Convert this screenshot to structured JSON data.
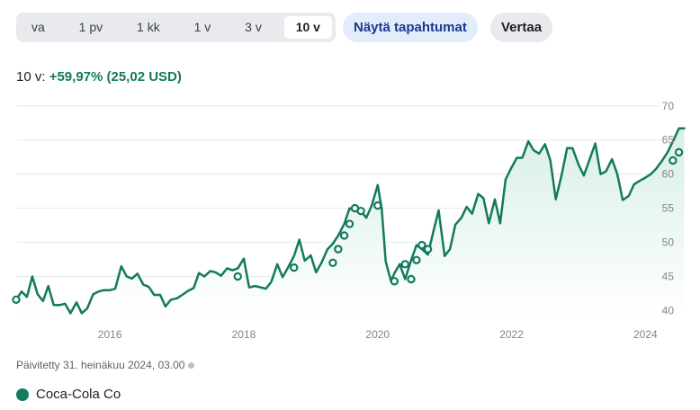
{
  "range_tabs": [
    {
      "label": "va"
    },
    {
      "label": "1 pv"
    },
    {
      "label": "1 kk"
    },
    {
      "label": "1 v"
    },
    {
      "label": "3 v"
    },
    {
      "label": "10 v",
      "active": true
    }
  ],
  "buttons": {
    "events_label": "Näytä tapahtumat",
    "compare_label": "Vertaa"
  },
  "performance": {
    "period_label": "10 v:",
    "change": "+59,97% (25,02 USD)"
  },
  "updated_text": "Päivitetty 31. heinäkuu 2024, 03.00",
  "legend": {
    "name": "Coca-Cola Co",
    "color": "#137a5e"
  },
  "colors": {
    "line": "#137a5e",
    "grid": "#e8eaed",
    "fill_top": "#d8efe6",
    "fill_bottom": "#ffffff"
  },
  "chart_data": {
    "type": "area",
    "xlim": [
      2014.6,
      2024.6
    ],
    "ylim": [
      39,
      70.5
    ],
    "x_ticks": [
      2016,
      2018,
      2020,
      2022,
      2024
    ],
    "x_tick_labels": [
      "2016",
      "2018",
      "2020",
      "2022",
      "2024"
    ],
    "y_ticks": [
      40,
      45,
      50,
      55,
      60,
      65,
      70
    ],
    "y_tick_labels": [
      "40",
      "45",
      "50",
      "55",
      "60",
      "65",
      "70"
    ],
    "grid": true,
    "series": [
      {
        "name": "Coca-Cola Co",
        "x": [
          2014.6,
          2014.68,
          2014.76,
          2014.84,
          2014.92,
          2015.0,
          2015.08,
          2015.16,
          2015.25,
          2015.33,
          2015.41,
          2015.5,
          2015.58,
          2015.66,
          2015.75,
          2015.83,
          2015.91,
          2016.0,
          2016.08,
          2016.17,
          2016.25,
          2016.33,
          2016.41,
          2016.5,
          2016.58,
          2016.66,
          2016.75,
          2016.83,
          2016.91,
          2017.0,
          2017.08,
          2017.17,
          2017.25,
          2017.33,
          2017.41,
          2017.5,
          2017.58,
          2017.66,
          2017.75,
          2017.83,
          2017.91,
          2018.0,
          2018.08,
          2018.17,
          2018.25,
          2018.33,
          2018.41,
          2018.5,
          2018.58,
          2018.66,
          2018.75,
          2018.83,
          2018.91,
          2019.0,
          2019.08,
          2019.16,
          2019.25,
          2019.33,
          2019.41,
          2019.5,
          2019.58,
          2019.66,
          2019.75,
          2019.83,
          2019.91,
          2020.0,
          2020.06,
          2020.12,
          2020.2,
          2020.25,
          2020.33,
          2020.41,
          2020.5,
          2020.58,
          2020.66,
          2020.75,
          2020.83,
          2020.91,
          2021.0,
          2021.08,
          2021.16,
          2021.25,
          2021.33,
          2021.41,
          2021.5,
          2021.58,
          2021.66,
          2021.75,
          2021.83,
          2021.91,
          2022.0,
          2022.08,
          2022.16,
          2022.25,
          2022.33,
          2022.41,
          2022.5,
          2022.58,
          2022.66,
          2022.75,
          2022.83,
          2022.91,
          2023.0,
          2023.08,
          2023.16,
          2023.25,
          2023.33,
          2023.41,
          2023.5,
          2023.58,
          2023.66,
          2023.75,
          2023.83,
          2023.91,
          2024.0,
          2024.08,
          2024.16,
          2024.25,
          2024.33,
          2024.41,
          2024.5,
          2024.58
        ],
        "values": [
          41.6,
          42.8,
          42.0,
          45.0,
          42.4,
          41.4,
          43.6,
          40.8,
          40.8,
          41.0,
          39.6,
          41.2,
          39.6,
          40.3,
          42.4,
          42.8,
          43.0,
          43.0,
          43.2,
          46.5,
          45.0,
          44.7,
          45.4,
          43.8,
          43.5,
          42.3,
          42.3,
          40.6,
          41.6,
          41.8,
          42.3,
          42.9,
          43.3,
          45.5,
          45.0,
          45.8,
          45.6,
          45.1,
          46.2,
          45.9,
          46.2,
          47.6,
          43.4,
          43.6,
          43.4,
          43.2,
          44.2,
          46.8,
          44.9,
          46.3,
          48.0,
          50.4,
          47.3,
          48.1,
          45.6,
          47.0,
          49.0,
          49.8,
          51.0,
          52.7,
          55.0,
          54.6,
          54.6,
          53.6,
          55.4,
          58.4,
          55.0,
          47.2,
          44.3,
          45.5,
          46.8,
          44.6,
          47.4,
          49.6,
          49.0,
          48.2,
          51.5,
          54.7,
          48.0,
          49.0,
          52.6,
          53.6,
          55.2,
          54.2,
          57.1,
          56.5,
          52.8,
          56.3,
          52.8,
          59.2,
          61.0,
          62.4,
          62.4,
          64.8,
          63.5,
          63.0,
          64.4,
          62.0,
          56.3,
          60.0,
          63.8,
          63.8,
          61.4,
          59.8,
          62.0,
          64.5,
          60.0,
          60.4,
          62.2,
          60.0,
          56.2,
          56.8,
          58.5,
          59.0,
          59.5,
          60.0,
          60.8,
          62.0,
          63.2,
          64.8,
          66.7,
          66.7
        ],
        "event_markers": {
          "x": [
            2014.6,
            2017.91,
            2018.75,
            2019.33,
            2019.41,
            2019.5,
            2019.58,
            2019.66,
            2019.75,
            2020.0,
            2020.25,
            2020.41,
            2020.5,
            2020.58,
            2020.66,
            2020.75,
            2024.41,
            2024.5
          ],
          "values": [
            41.6,
            45.0,
            46.3,
            47.0,
            49.0,
            51.0,
            52.7,
            55.0,
            54.6,
            55.4,
            44.3,
            46.8,
            44.6,
            47.4,
            49.6,
            49.0,
            62.0,
            63.2
          ]
        }
      }
    ]
  }
}
